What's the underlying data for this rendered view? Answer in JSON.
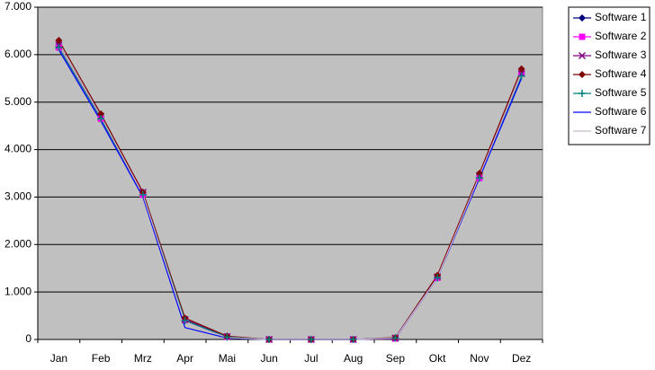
{
  "chart_data": {
    "type": "line",
    "categories": [
      "Jan",
      "Feb",
      "Mrz",
      "Apr",
      "Mai",
      "Jun",
      "Jul",
      "Aug",
      "Sep",
      "Okt",
      "Nov",
      "Dez"
    ],
    "ylim": [
      0,
      7000
    ],
    "yticks": [
      {
        "value": 0,
        "label": "0"
      },
      {
        "value": 1000,
        "label": "1.000"
      },
      {
        "value": 2000,
        "label": "2.000"
      },
      {
        "value": 3000,
        "label": "3.000"
      },
      {
        "value": 4000,
        "label": "4.000"
      },
      {
        "value": 5000,
        "label": "5.000"
      },
      {
        "value": 6000,
        "label": "6.000"
      },
      {
        "value": 7000,
        "label": "7.000"
      }
    ],
    "grid": true,
    "plot_background": "#c0c0c0",
    "legend": "right",
    "series": [
      {
        "name": "Software 1",
        "color": "#000080",
        "marker": "diamond",
        "values": [
          6200,
          4700,
          3100,
          400,
          50,
          0,
          0,
          0,
          30,
          1300,
          3450,
          5600
        ]
      },
      {
        "name": "Software 2",
        "color": "#ff00ff",
        "marker": "square",
        "values": [
          6150,
          4650,
          3050,
          420,
          60,
          0,
          0,
          0,
          20,
          1300,
          3400,
          5600
        ]
      },
      {
        "name": "Software 3",
        "color": "#800080",
        "marker": "x",
        "values": [
          6200,
          4700,
          3100,
          420,
          60,
          0,
          0,
          0,
          30,
          1320,
          3450,
          5600
        ]
      },
      {
        "name": "Software 4",
        "color": "#800000",
        "marker": "diamond",
        "values": [
          6300,
          4750,
          3100,
          450,
          70,
          0,
          0,
          0,
          40,
          1350,
          3500,
          5700
        ]
      },
      {
        "name": "Software 5",
        "color": "#008080",
        "marker": "plus",
        "values": [
          6150,
          4650,
          3050,
          400,
          50,
          0,
          0,
          0,
          30,
          1300,
          3400,
          5550
        ]
      },
      {
        "name": "Software 6",
        "color": "#0000ff",
        "marker": "none",
        "values": [
          6100,
          4600,
          3000,
          250,
          30,
          0,
          0,
          0,
          30,
          1300,
          3400,
          5500
        ]
      },
      {
        "name": "Software 7",
        "color": "#c8b8c8",
        "marker": "none",
        "values": [
          6200,
          4700,
          3050,
          350,
          40,
          0,
          0,
          0,
          30,
          1300,
          3450,
          5600
        ]
      }
    ]
  }
}
